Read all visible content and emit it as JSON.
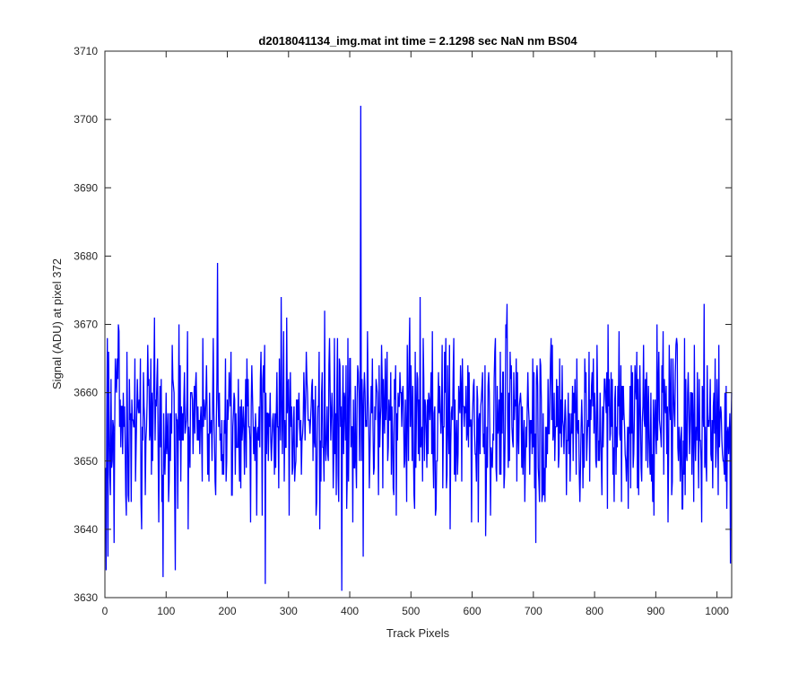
{
  "chart_data": {
    "type": "line",
    "title": "d2018041134_img.mat int time = 2.1298 sec  NaN nm BS04",
    "xlabel": "Track Pixels",
    "ylabel": "Signal (ADU) at pixel 372",
    "xlim": [
      0,
      1024
    ],
    "ylim": [
      3630,
      3710
    ],
    "xticks": [
      0,
      100,
      200,
      300,
      400,
      500,
      600,
      700,
      800,
      900,
      1000
    ],
    "yticks": [
      3630,
      3640,
      3650,
      3660,
      3670,
      3680,
      3690,
      3700,
      3710
    ],
    "grid": false,
    "box": true,
    "series": [
      {
        "color": "#0000ff",
        "x_start": 1,
        "x_step": 1,
        "point_count": 1024,
        "noise_center": 3656,
        "noise_low": 3631,
        "noise_high": 3679,
        "spike": {
          "x": 418,
          "y": 3702
        },
        "notable_points": [
          {
            "x": 2,
            "y": 3634
          },
          {
            "x": 5,
            "y": 3636
          },
          {
            "x": 95,
            "y": 3633
          },
          {
            "x": 115,
            "y": 3634
          },
          {
            "x": 184,
            "y": 3679
          },
          {
            "x": 262,
            "y": 3632
          },
          {
            "x": 387,
            "y": 3631
          },
          {
            "x": 418,
            "y": 3702
          },
          {
            "x": 422,
            "y": 3636
          },
          {
            "x": 1022,
            "y": 3635
          }
        ]
      }
    ]
  }
}
